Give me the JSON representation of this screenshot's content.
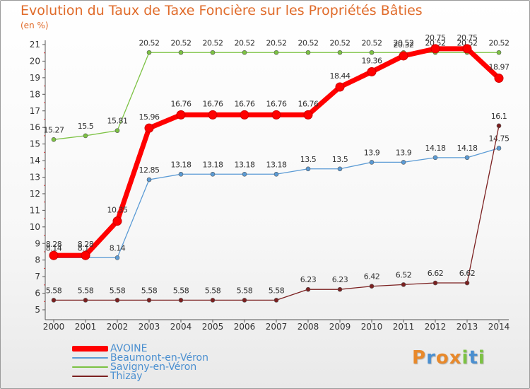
{
  "header": {
    "title": "Evolution du Taux de Taxe Foncière sur les Propriétés Bâties",
    "subtitle": "(en %)"
  },
  "chart_data": {
    "type": "line",
    "title": "Evolution du Taux de Taxe Foncière sur les Propriétés Bâties",
    "subtitle": "(en %)",
    "xlabel": "",
    "ylabel": "(en %)",
    "x": [
      "2000",
      "2001",
      "2002",
      "2003",
      "2004",
      "2005",
      "2006",
      "2007",
      "2008",
      "2009",
      "2010",
      "2011",
      "2012",
      "2013",
      "2014"
    ],
    "ylim": [
      5,
      21
    ],
    "yticks": [
      5,
      6,
      7,
      8,
      9,
      10,
      11,
      12,
      13,
      14,
      15,
      16,
      17,
      18,
      19,
      20,
      21
    ],
    "grid": false,
    "legend_position": "bottom-left",
    "series": [
      {
        "name": "Savigny-en-Véron",
        "color": "#7cc243",
        "values": [
          15.27,
          15.5,
          15.81,
          20.52,
          20.52,
          20.52,
          20.52,
          20.52,
          20.52,
          20.52,
          20.52,
          20.52,
          20.52,
          20.52,
          20.52
        ],
        "labels": [
          "15.27",
          "15.5",
          "15.81",
          "20.52",
          "20.52",
          "20.52",
          "20.52",
          "20.52",
          "20.52",
          "20.52",
          "20.52",
          "20.52",
          "20.52",
          "20.52",
          "20.52"
        ]
      },
      {
        "name": "Beaumont-en-Véron",
        "color": "#5b9bd5",
        "values": [
          8.14,
          8.14,
          8.14,
          12.85,
          13.18,
          13.18,
          13.18,
          13.18,
          13.5,
          13.5,
          13.9,
          13.9,
          14.18,
          14.18,
          14.75
        ],
        "labels": [
          "8.14",
          "8.14",
          "8.14",
          "12.85",
          "13.18",
          "13.18",
          "13.18",
          "13.18",
          "13.5",
          "13.5",
          "13.9",
          "13.9",
          "14.18",
          "14.18",
          "14.75"
        ]
      },
      {
        "name": "Thizay",
        "color": "#7b2020",
        "values": [
          5.58,
          5.58,
          5.58,
          5.58,
          5.58,
          5.58,
          5.58,
          5.58,
          6.23,
          6.23,
          6.42,
          6.52,
          6.62,
          6.62,
          16.1
        ],
        "labels": [
          "5.58",
          "5.58",
          "5.58",
          "5.58",
          "5.58",
          "5.58",
          "5.58",
          "5.58",
          "6.23",
          "6.23",
          "6.42",
          "6.52",
          "6.62",
          "6.62",
          "16.1"
        ]
      },
      {
        "name": "AVOINE",
        "color": "#ff0000",
        "values": [
          8.28,
          8.28,
          10.35,
          15.96,
          16.76,
          16.76,
          16.76,
          16.76,
          16.76,
          18.44,
          19.36,
          20.32,
          20.75,
          20.75,
          18.97
        ],
        "labels": [
          "8.28",
          "8.28",
          "10.35",
          "15.96",
          "16.76",
          "16.76",
          "16.76",
          "16.76",
          "16.76",
          "18.44",
          "19.36",
          "20.32",
          "20.75",
          "20.75",
          "18.97"
        ]
      }
    ]
  },
  "legend": [
    {
      "name": "AVOINE",
      "color": "#ff0000"
    },
    {
      "name": "Beaumont-en-Véron",
      "color": "#5b9bd5"
    },
    {
      "name": "Savigny-en-Véron",
      "color": "#7cc243"
    },
    {
      "name": "Thizay",
      "color": "#7b2020"
    }
  ],
  "logo": {
    "letters": [
      "P",
      "r",
      "o",
      "x",
      "i",
      "t",
      "i"
    ],
    "colors": [
      "#e8892b",
      "#4a8fd0",
      "#e8892b",
      "#e8892b",
      "#7cc243",
      "#4a8fd0",
      "#7cc243"
    ]
  }
}
